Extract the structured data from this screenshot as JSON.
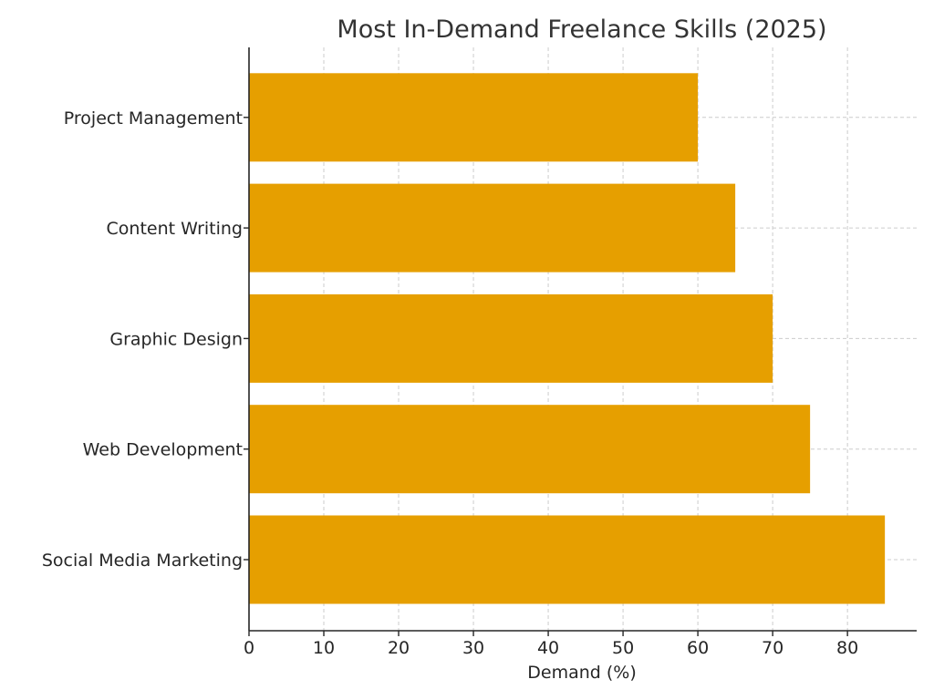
{
  "chart_data": {
    "type": "bar",
    "orientation": "horizontal",
    "title": "Most In-Demand Freelance Skills (2025)",
    "xlabel": "Demand (%)",
    "ylabel": "",
    "categories": [
      "Social Media Marketing",
      "Web Development",
      "Graphic Design",
      "Content Writing",
      "Project Management"
    ],
    "values": [
      85,
      75,
      70,
      65,
      60
    ],
    "xlim": [
      0,
      89.25
    ],
    "xticks": [
      0,
      10,
      20,
      30,
      40,
      50,
      60,
      70,
      80
    ],
    "grid": true,
    "bar_color": "#E69F00"
  }
}
